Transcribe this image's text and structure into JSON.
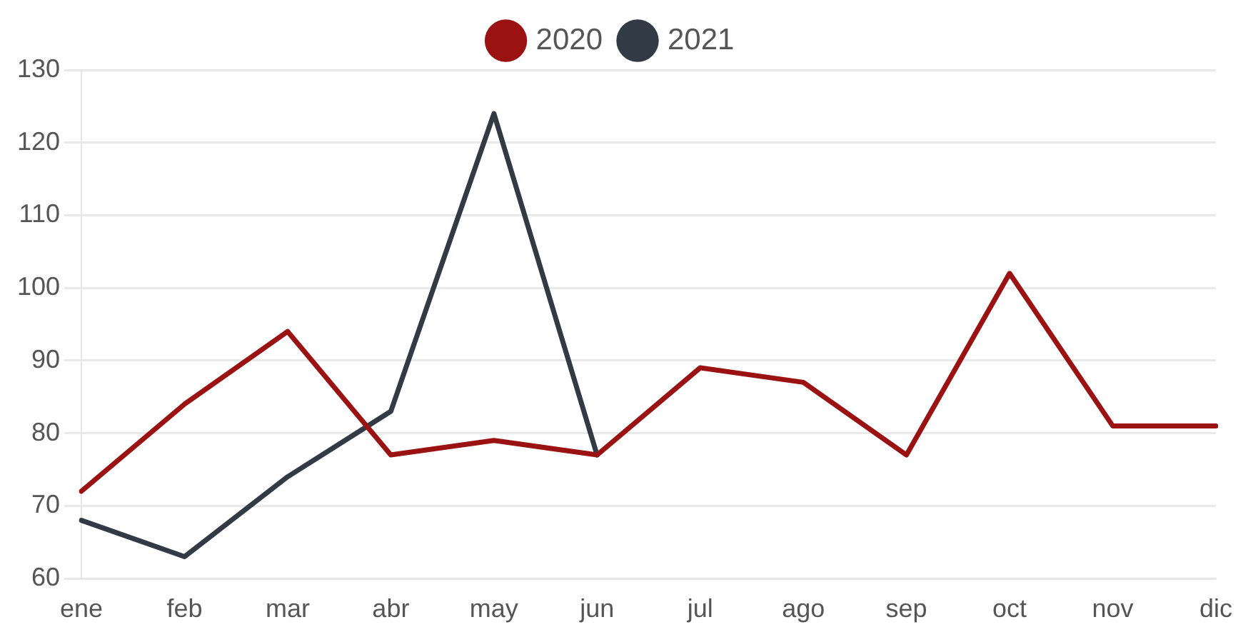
{
  "chart_data": {
    "type": "line",
    "categories": [
      "ene",
      "feb",
      "mar",
      "abr",
      "may",
      "jun",
      "jul",
      "ago",
      "sep",
      "oct",
      "nov",
      "dic"
    ],
    "series": [
      {
        "name": "2020",
        "color": "#9b1212",
        "values": [
          72,
          84,
          94,
          77,
          79,
          77,
          89,
          87,
          77,
          102,
          81,
          81
        ]
      },
      {
        "name": "2021",
        "color": "#323a46",
        "values": [
          68,
          63,
          74,
          83,
          124,
          77,
          null,
          null,
          null,
          null,
          null,
          null
        ]
      }
    ],
    "ylim": [
      60,
      130
    ],
    "yticks": [
      60,
      70,
      80,
      90,
      100,
      110,
      120,
      130
    ],
    "grid": "y",
    "legend": "top",
    "marker": "none",
    "line_style": "solid"
  }
}
